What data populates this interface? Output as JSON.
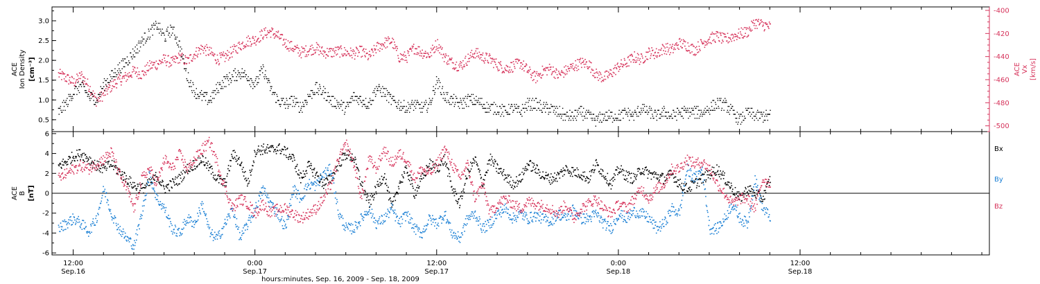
{
  "colors": {
    "density": "#000000",
    "velocity": "#d6325a",
    "bx": "#000000",
    "by": "#1a7fd4",
    "bz": "#d6325a"
  },
  "time_axis": {
    "title": "hours:minutes, Sep. 16, 2009 - Sep. 18, 2009",
    "range_hours": [
      10.6,
      72.5
    ],
    "major_ticks": [
      {
        "hours": 12,
        "time": "12:00",
        "date": "Sep.16"
      },
      {
        "hours": 24,
        "time": "0:00",
        "date": "Sep.17"
      },
      {
        "hours": 36,
        "time": "12:00",
        "date": "Sep.17"
      },
      {
        "hours": 48,
        "time": "0:00",
        "date": "Sep.18"
      },
      {
        "hours": 60,
        "time": "12:00",
        "date": "Sep.18"
      }
    ],
    "minor_tick_step_hours": 2
  },
  "chart_data": [
    {
      "type": "scatter",
      "panel": "plasma",
      "left_axis": {
        "label_lines": [
          "ACE",
          "Ion Density"
        ],
        "unit": "[cm⁻³]",
        "range": [
          0.2,
          3.35
        ],
        "ticks": [
          "0.5",
          "1.0",
          "1.5",
          "2.0",
          "2.5",
          "3.0"
        ]
      },
      "right_axis": {
        "label_lines": [
          "ACE",
          "Vx"
        ],
        "unit": "[km/s]",
        "range": [
          -505,
          -397
        ],
        "ticks": [
          "-400",
          "-420",
          "-440",
          "-460",
          "-480",
          "-500"
        ]
      },
      "series": [
        {
          "key": "density",
          "axis": "left",
          "x_hours": [
            11.0,
            11.5,
            12.0,
            12.5,
            13.0,
            13.5,
            14.0,
            14.5,
            15.0,
            15.5,
            16.0,
            16.5,
            17.0,
            17.5,
            18.0,
            18.5,
            19.0,
            19.5,
            20.0,
            20.5,
            21.0,
            21.5,
            22.0,
            22.5,
            23.0,
            23.5,
            24.0,
            24.5,
            25.0,
            25.5,
            26.0,
            26.5,
            27.0,
            27.5,
            28.0,
            28.5,
            29.0,
            29.5,
            30.0,
            30.5,
            31.0,
            31.5,
            32.0,
            32.5,
            33.0,
            33.5,
            34.0,
            34.5,
            35.0,
            35.5,
            36.0,
            36.5,
            37.0,
            37.5,
            38.0,
            38.5,
            39.0,
            39.5,
            40.0,
            40.5,
            41.0,
            41.5,
            42.0,
            42.5,
            43.0,
            43.5,
            44.0,
            44.5,
            45.0,
            45.5,
            46.0,
            46.5,
            47.0,
            47.5,
            48.0,
            48.5,
            49.0,
            49.5,
            50.0,
            50.5,
            51.0,
            51.5,
            52.0,
            52.5,
            53.0,
            53.5,
            54.0,
            54.5,
            55.0,
            55.5,
            56.0,
            56.5,
            57.0,
            57.5,
            58.0
          ],
          "y": [
            0.7,
            0.9,
            1.2,
            1.4,
            1.1,
            1.0,
            1.4,
            1.6,
            1.8,
            2.0,
            2.2,
            2.5,
            2.7,
            2.9,
            2.6,
            2.8,
            2.4,
            1.6,
            1.2,
            1.1,
            1.0,
            1.3,
            1.5,
            1.6,
            1.7,
            1.6,
            1.4,
            1.8,
            1.3,
            1.0,
            0.9,
            1.0,
            0.8,
            1.1,
            1.3,
            1.2,
            1.0,
            0.9,
            0.8,
            1.1,
            1.0,
            0.9,
            1.3,
            1.2,
            1.0,
            0.9,
            0.8,
            0.9,
            0.8,
            0.9,
            1.5,
            1.1,
            1.0,
            0.9,
            1.0,
            1.0,
            0.9,
            0.8,
            0.8,
            0.7,
            0.8,
            0.7,
            0.9,
            0.9,
            0.8,
            0.8,
            0.7,
            0.6,
            0.6,
            0.7,
            0.6,
            0.5,
            0.6,
            0.6,
            0.6,
            0.7,
            0.6,
            0.8,
            0.7,
            0.6,
            0.7,
            0.6,
            0.7,
            0.7,
            0.7,
            0.7,
            0.8,
            0.9,
            0.9,
            0.7,
            0.5,
            0.7,
            0.6,
            0.6,
            0.6
          ]
        },
        {
          "key": "velocity",
          "axis": "right",
          "x_hours": [
            11.0,
            11.5,
            12.0,
            12.5,
            13.0,
            13.5,
            14.0,
            14.5,
            15.0,
            15.5,
            16.0,
            16.5,
            17.0,
            17.5,
            18.0,
            18.5,
            19.0,
            19.5,
            20.0,
            20.5,
            21.0,
            21.5,
            22.0,
            22.5,
            23.0,
            23.5,
            24.0,
            24.5,
            25.0,
            25.5,
            26.0,
            26.5,
            27.0,
            27.5,
            28.0,
            28.5,
            29.0,
            29.5,
            30.0,
            30.5,
            31.0,
            31.5,
            32.0,
            32.5,
            33.0,
            33.5,
            34.0,
            34.5,
            35.0,
            35.5,
            36.0,
            36.5,
            37.0,
            37.5,
            38.0,
            38.5,
            39.0,
            39.5,
            40.0,
            40.5,
            41.0,
            41.5,
            42.0,
            42.5,
            43.0,
            43.5,
            44.0,
            44.5,
            45.0,
            45.5,
            46.0,
            46.5,
            47.0,
            47.5,
            48.0,
            48.5,
            49.0,
            49.5,
            50.0,
            50.5,
            51.0,
            51.5,
            52.0,
            52.5,
            53.0,
            53.5,
            54.0,
            54.5,
            55.0,
            55.5,
            56.0,
            56.5,
            57.0,
            57.5,
            58.0
          ],
          "y": [
            -455,
            -458,
            -462,
            -456,
            -465,
            -478,
            -472,
            -465,
            -460,
            -457,
            -452,
            -455,
            -448,
            -446,
            -442,
            -445,
            -440,
            -444,
            -437,
            -432,
            -436,
            -442,
            -440,
            -435,
            -430,
            -426,
            -425,
            -420,
            -418,
            -422,
            -428,
            -432,
            -436,
            -434,
            -432,
            -436,
            -436,
            -435,
            -436,
            -437,
            -435,
            -440,
            -432,
            -428,
            -426,
            -440,
            -440,
            -432,
            -436,
            -438,
            -428,
            -440,
            -445,
            -448,
            -442,
            -436,
            -440,
            -442,
            -447,
            -450,
            -448,
            -445,
            -452,
            -458,
            -452,
            -450,
            -456,
            -452,
            -448,
            -445,
            -446,
            -455,
            -458,
            -454,
            -448,
            -445,
            -440,
            -442,
            -436,
            -437,
            -432,
            -434,
            -428,
            -430,
            -434,
            -428,
            -424,
            -422,
            -425,
            -422,
            -420,
            -418,
            -410,
            -412,
            -414
          ]
        }
      ]
    },
    {
      "type": "scatter",
      "panel": "magnetic",
      "left_axis": {
        "label_lines": [
          "ACE",
          "B"
        ],
        "unit": "[nT]",
        "range": [
          -6.2,
          6.2
        ],
        "ticks": [
          "6",
          "4",
          "2",
          "0",
          "-2",
          "-4",
          "-6"
        ]
      },
      "legend": [
        "Bx",
        "By",
        "Bz"
      ],
      "legend_placement": "right",
      "series": [
        {
          "key": "bx",
          "name": "Bx",
          "x_hours": [
            11.0,
            11.5,
            12.0,
            12.5,
            13.0,
            13.5,
            14.0,
            14.5,
            15.0,
            15.5,
            16.0,
            16.5,
            17.0,
            17.5,
            18.0,
            18.5,
            19.0,
            19.5,
            20.0,
            20.5,
            21.0,
            21.5,
            22.0,
            22.5,
            23.0,
            23.5,
            24.0,
            24.5,
            25.0,
            25.5,
            26.0,
            26.5,
            27.0,
            27.5,
            28.0,
            28.5,
            29.0,
            29.5,
            30.0,
            30.5,
            31.0,
            31.5,
            32.0,
            32.5,
            33.0,
            33.5,
            34.0,
            34.5,
            35.0,
            35.5,
            36.0,
            36.5,
            37.0,
            37.5,
            38.0,
            38.5,
            39.0,
            39.5,
            40.0,
            40.5,
            41.0,
            41.5,
            42.0,
            42.5,
            43.0,
            43.5,
            44.0,
            44.5,
            45.0,
            45.5,
            46.0,
            46.5,
            47.0,
            47.5,
            48.0,
            48.5,
            49.0,
            49.5,
            50.0,
            50.5,
            51.0,
            51.5,
            52.0,
            52.5,
            53.0,
            53.5,
            54.0,
            54.5,
            55.0,
            55.5,
            56.0,
            56.5,
            57.0,
            57.5,
            58.0
          ],
          "y": [
            2.8,
            3.2,
            3.8,
            4.0,
            3.5,
            2.8,
            2.5,
            3.0,
            2.2,
            1.5,
            0.8,
            0.5,
            1.0,
            1.8,
            0.5,
            1.0,
            1.5,
            2.5,
            3.0,
            3.5,
            2.5,
            1.5,
            1.0,
            4.0,
            3.2,
            1.0,
            4.3,
            4.5,
            4.4,
            4.6,
            4.2,
            3.5,
            1.5,
            2.8,
            2.0,
            1.0,
            1.5,
            3.0,
            4.0,
            3.6,
            1.0,
            -1.0,
            0.5,
            2.0,
            -1.5,
            1.0,
            2.5,
            0.0,
            1.5,
            3.0,
            2.5,
            3.5,
            0.5,
            -1.0,
            2.0,
            3.5,
            1.0,
            3.5,
            2.5,
            1.8,
            1.0,
            1.5,
            3.0,
            2.5,
            1.8,
            1.5,
            1.8,
            2.5,
            2.2,
            2.0,
            1.5,
            3.0,
            2.0,
            1.0,
            2.5,
            1.8,
            1.5,
            2.5,
            2.0,
            1.8,
            1.5,
            2.0,
            1.0,
            0.5,
            1.0,
            1.5,
            2.0,
            2.5,
            1.5,
            0.5,
            -0.5,
            0.5,
            0.0,
            -0.5,
            1.5
          ]
        },
        {
          "key": "by",
          "name": "By",
          "x_hours": [
            11.0,
            11.5,
            12.0,
            12.5,
            13.0,
            13.5,
            14.0,
            14.5,
            15.0,
            15.5,
            16.0,
            16.5,
            17.0,
            17.5,
            18.0,
            18.5,
            19.0,
            19.5,
            20.0,
            20.5,
            21.0,
            21.5,
            22.0,
            22.5,
            23.0,
            23.5,
            24.0,
            24.5,
            25.0,
            25.5,
            26.0,
            26.5,
            27.0,
            27.5,
            28.0,
            28.5,
            29.0,
            29.5,
            30.0,
            30.5,
            31.0,
            31.5,
            32.0,
            32.5,
            33.0,
            33.5,
            34.0,
            34.5,
            35.0,
            35.5,
            36.0,
            36.5,
            37.0,
            37.5,
            38.0,
            38.5,
            39.0,
            39.5,
            40.0,
            40.5,
            41.0,
            41.5,
            42.0,
            42.5,
            43.0,
            43.5,
            44.0,
            44.5,
            45.0,
            45.5,
            46.0,
            46.5,
            47.0,
            47.5,
            48.0,
            48.5,
            49.0,
            49.5,
            50.0,
            50.5,
            51.0,
            51.5,
            52.0,
            52.5,
            53.0,
            53.5,
            54.0,
            54.5,
            55.0,
            55.5,
            56.0,
            56.5,
            57.0,
            57.5,
            58.0
          ],
          "y": [
            -3.5,
            -3.0,
            -2.5,
            -3.0,
            -3.8,
            -2.5,
            0.5,
            -2.0,
            -3.5,
            -4.5,
            -5.2,
            -2.0,
            2.0,
            -0.5,
            -1.5,
            -3.5,
            -4.0,
            -2.5,
            -3.0,
            -1.0,
            -4.0,
            -4.5,
            -3.0,
            -1.5,
            -4.5,
            -3.0,
            -1.5,
            0.5,
            -1.0,
            -2.0,
            -3.5,
            0.5,
            -0.5,
            1.0,
            0.8,
            2.0,
            2.5,
            -2.0,
            -3.5,
            -3.5,
            -2.5,
            -1.5,
            -3.0,
            -2.5,
            -1.5,
            -3.0,
            -2.0,
            -3.5,
            -4.0,
            -2.5,
            -3.0,
            -2.0,
            -4.0,
            -4.5,
            -2.5,
            -2.0,
            -3.5,
            -3.0,
            -2.0,
            -1.5,
            -2.5,
            -2.0,
            -2.5,
            -2.2,
            -2.5,
            -2.8,
            -2.0,
            -2.5,
            -1.5,
            -2.5,
            -2.5,
            -2.0,
            -3.0,
            -3.5,
            -2.0,
            -2.5,
            -1.8,
            -2.0,
            -2.5,
            -3.5,
            -3.0,
            -1.5,
            -2.0,
            2.5,
            1.5,
            2.5,
            -3.5,
            -3.5,
            -2.5,
            -1.0,
            -2.5,
            -3.0,
            1.5,
            -1.5,
            -2.3
          ]
        },
        {
          "key": "bz",
          "name": "Bz",
          "x_hours": [
            11.0,
            11.5,
            12.0,
            12.5,
            13.0,
            13.5,
            14.0,
            14.5,
            15.0,
            15.5,
            16.0,
            16.5,
            17.0,
            17.5,
            18.0,
            18.5,
            19.0,
            19.5,
            20.0,
            20.5,
            21.0,
            21.5,
            22.0,
            22.5,
            23.0,
            23.5,
            24.0,
            24.5,
            25.0,
            25.5,
            26.0,
            26.5,
            27.0,
            27.5,
            28.0,
            28.5,
            29.0,
            29.5,
            30.0,
            30.5,
            31.0,
            31.5,
            32.0,
            32.5,
            33.0,
            33.5,
            34.0,
            34.5,
            35.0,
            35.5,
            36.0,
            36.5,
            37.0,
            37.5,
            38.0,
            38.5,
            39.0,
            39.5,
            40.0,
            40.5,
            41.0,
            41.5,
            42.0,
            42.5,
            43.0,
            43.5,
            44.0,
            44.5,
            45.0,
            45.5,
            46.0,
            46.5,
            47.0,
            47.5,
            48.0,
            48.5,
            49.0,
            49.5,
            50.0,
            50.5,
            51.0,
            51.5,
            52.0,
            52.5,
            53.0,
            53.5,
            54.0,
            54.5,
            55.0,
            55.5,
            56.0,
            56.5,
            57.0,
            57.5,
            58.0
          ],
          "y": [
            1.5,
            2.0,
            2.5,
            2.8,
            2.5,
            3.0,
            3.5,
            4.2,
            2.0,
            0.5,
            -1.5,
            1.5,
            2.5,
            1.0,
            3.5,
            2.5,
            4.0,
            2.5,
            3.5,
            4.5,
            5.2,
            3.0,
            0.5,
            -1.5,
            -0.5,
            -1.0,
            -2.0,
            -1.0,
            -2.0,
            -1.5,
            -1.5,
            -2.0,
            -2.5,
            -2.0,
            -1.5,
            -0.5,
            1.0,
            3.5,
            5.0,
            3.0,
            -0.5,
            3.5,
            2.5,
            4.5,
            3.0,
            4.0,
            3.5,
            1.5,
            2.5,
            2.0,
            3.0,
            4.5,
            3.0,
            1.5,
            3.0,
            -0.5,
            1.0,
            -2.0,
            -1.0,
            -0.5,
            -1.0,
            -1.5,
            -0.8,
            -1.0,
            -1.2,
            -1.5,
            -2.0,
            -1.0,
            -2.5,
            -1.5,
            -1.0,
            -0.5,
            -1.5,
            -2.0,
            -1.0,
            -1.5,
            -0.5,
            0.5,
            -0.5,
            0.5,
            1.0,
            2.5,
            2.5,
            3.5,
            3.0,
            3.2,
            2.5,
            1.0,
            0.0,
            -1.0,
            -0.5,
            -0.5,
            -1.5,
            1.5,
            1.0
          ]
        }
      ]
    }
  ]
}
